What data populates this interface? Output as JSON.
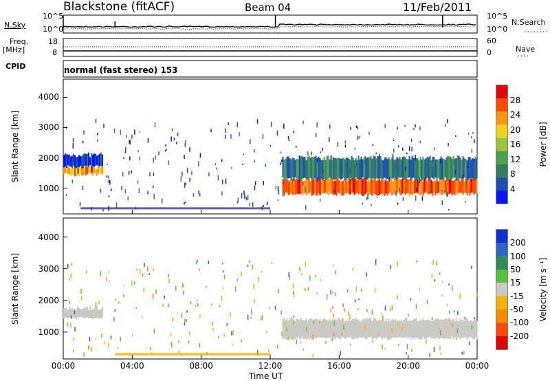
{
  "header": {
    "station": "Blackstone (fitACF)",
    "beam": "Beam 04",
    "date": "11/Feb/2011"
  },
  "top_panel": {
    "left_label": "N.Sky",
    "right_label": "N.Search",
    "left_ticks": [
      "10^5",
      "10^0"
    ],
    "right_ticks": [
      "10^5",
      "10^0"
    ]
  },
  "freq_panel": {
    "left_label_1": "Freq.",
    "left_label_2": "[MHz]",
    "right_label": "Nave",
    "left_ticks": [
      "18",
      "8"
    ],
    "right_ticks": [
      "60",
      "0"
    ]
  },
  "cpid_panel": {
    "label": "CPID",
    "text": "normal (fast stereo) 153"
  },
  "colors": {
    "power_scale": [
      "#0a14ff",
      "#1d4fb0",
      "#2f7c63",
      "#4fa04a",
      "#9cc43a",
      "#f2d21c",
      "#ff9410",
      "#ff4a00",
      "#e60000"
    ],
    "velocity_scale": [
      "#1030d0",
      "#2a66c4",
      "#2f8c58",
      "#55c23e",
      "#c9c9c2",
      "#f4b400",
      "#ff8a00",
      "#ff4a00",
      "#e00000"
    ]
  },
  "chart_data": [
    {
      "type": "heatmap",
      "panel": "power",
      "ylabel": "Slant Range [km]",
      "yticks": [
        "1000",
        "2000",
        "3000",
        "4000"
      ],
      "ylim": [
        150,
        4600
      ],
      "colorbar_label": "Power [dB]",
      "colorbar_ticks": [
        "4",
        "8",
        "12",
        "16",
        "20",
        "24",
        "28"
      ],
      "colorbar_range": [
        0,
        32
      ],
      "echo_bands": [
        {
          "t_start": 0.0,
          "t_end": 2.3,
          "r_low": 1450,
          "r_high": 1700,
          "level": 22
        },
        {
          "t_start": 0.0,
          "t_end": 2.3,
          "r_low": 1700,
          "r_high": 2100,
          "level": 5
        },
        {
          "t_start": 12.7,
          "t_end": 24.0,
          "r_low": 800,
          "r_high": 1300,
          "level": 26
        },
        {
          "t_start": 12.7,
          "t_end": 24.0,
          "r_low": 1300,
          "r_high": 2000,
          "level": 8
        }
      ]
    },
    {
      "type": "heatmap",
      "panel": "velocity",
      "ylabel": "Slant Range [km]",
      "yticks": [
        "1000",
        "2000",
        "3000",
        "4000"
      ],
      "ylim": [
        150,
        4600
      ],
      "colorbar_label": "Velocity [m s⁻¹]",
      "colorbar_ticks": [
        "200",
        "100",
        "50",
        "15",
        "-15",
        "-50",
        "-100",
        "-200"
      ],
      "echo_bands": [
        {
          "t_start": 0.0,
          "t_end": 2.3,
          "r_low": 1450,
          "r_high": 1750,
          "level": 0
        },
        {
          "t_start": 12.7,
          "t_end": 24.0,
          "r_low": 800,
          "r_high": 1400,
          "level": 0
        }
      ]
    }
  ],
  "x_axis": {
    "label": "Time UT",
    "ticks": [
      "00:00",
      "04:00",
      "08:00",
      "12:00",
      "16:00",
      "20:00",
      "00:00"
    ],
    "range_hours": [
      0,
      24
    ]
  }
}
